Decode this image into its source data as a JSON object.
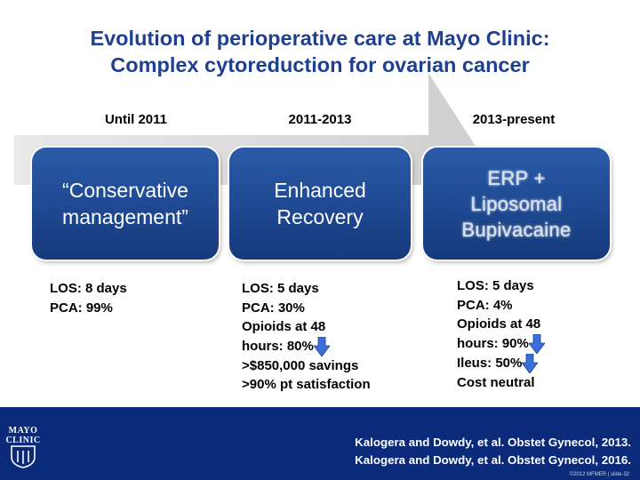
{
  "title": {
    "line1": "Evolution of perioperative care at Mayo Clinic:",
    "line2": "Complex cytoreduction for ovarian cancer"
  },
  "columns": [
    {
      "period": "Until 2011",
      "box_lines": [
        "“Conservative",
        "management”"
      ],
      "stats": [
        "LOS: 8 days",
        "PCA: 99%"
      ]
    },
    {
      "period": "2011-2013",
      "box_lines": [
        "Enhanced",
        "Recovery"
      ],
      "stats": [
        "LOS: 5 days",
        "PCA: 30%",
        "Opioids at 48",
        "hours: 80%",
        ">$850,000 savings",
        ">90% pt satisfaction"
      ]
    },
    {
      "period": "2013-present",
      "box_lines": [
        "ERP +",
        "Liposomal",
        "Bupivacaine"
      ],
      "stats": [
        "LOS: 5 days",
        "PCA: 4%",
        "Opioids at 48",
        "hours: 90%",
        "Ileus: 50%",
        "Cost neutral"
      ]
    }
  ],
  "footer": {
    "logo_line1": "MAYO",
    "logo_line2": "CLINIC",
    "citations": [
      "Kalogera and Dowdy, et al. Obstet Gynecol, 2013.",
      "Kalogera and Dowdy, et al. Obstet Gynecol, 2016."
    ],
    "copyright": "©2012 MFMER | slide-32"
  },
  "colors": {
    "title": "#1f3f8f",
    "box": "#1e4891",
    "footer": "#0b2a7a",
    "arrow_bg": "#d9d9d9",
    "down_arrow": "#3a6fd8"
  },
  "icons": {
    "down_arrow": "down-arrow-icon",
    "logo": "mayo-clinic-shield-icon"
  }
}
